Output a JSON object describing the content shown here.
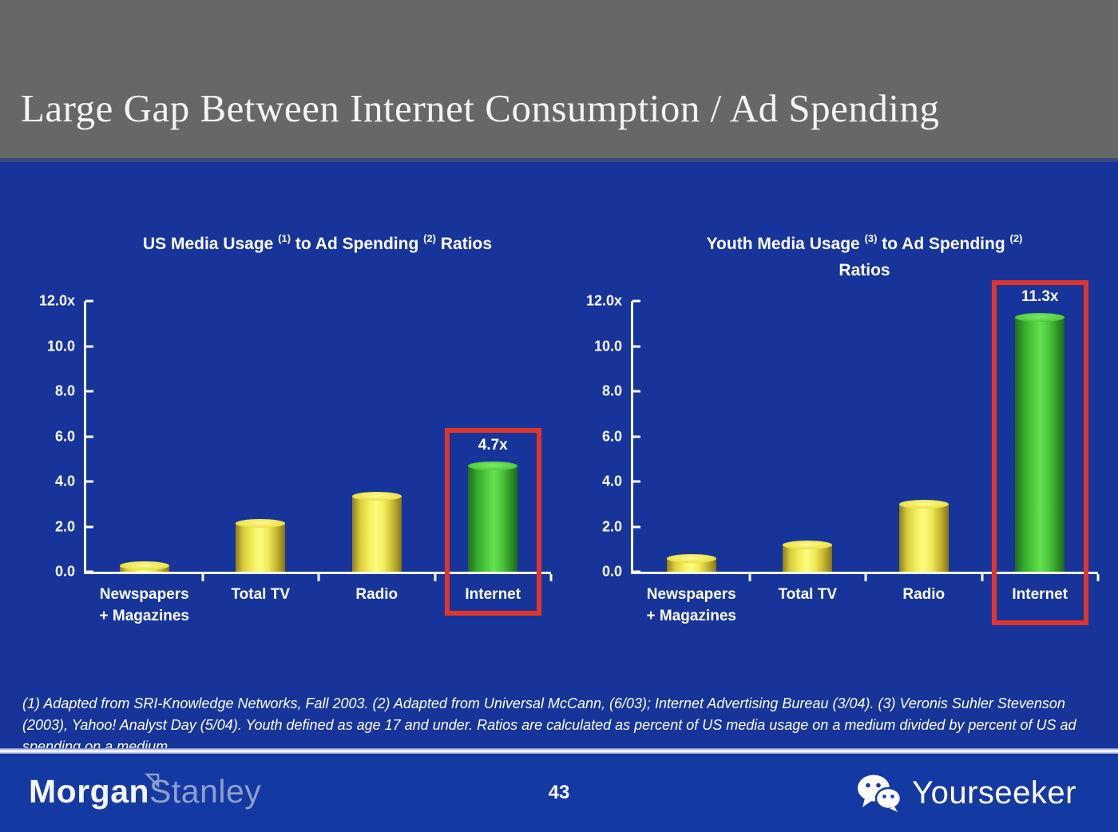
{
  "slide": {
    "title": "Large Gap Between Internet Consumption / Ad Spending",
    "page_number": "43"
  },
  "chart_data": [
    {
      "type": "bar",
      "title_plain": "US Media Usage (1) to Ad Spending (2) Ratios",
      "title_segments": [
        {
          "text": "US Media Usage "
        },
        {
          "sup": "(1)"
        },
        {
          "text": " to Ad Spending "
        },
        {
          "sup": "(2)"
        },
        {
          "text": " Ratios"
        }
      ],
      "categories": [
        "Newspapers\n+ Magazines",
        "Total TV",
        "Radio",
        "Internet"
      ],
      "values": [
        0.3,
        2.15,
        3.35,
        4.7
      ],
      "bar_colors": [
        "yellow",
        "yellow",
        "yellow",
        "green"
      ],
      "value_labels": [
        "",
        "",
        "",
        "4.7x"
      ],
      "highlight_category": "Internet",
      "ylim": [
        0,
        12
      ],
      "yticks": [
        {
          "label": "12.0x",
          "value": 12
        },
        {
          "label": "10.0",
          "value": 10
        },
        {
          "label": "8.0",
          "value": 8
        },
        {
          "label": "6.0",
          "value": 6
        },
        {
          "label": "4.0",
          "value": 4
        },
        {
          "label": "2.0",
          "value": 2
        },
        {
          "label": "0.0",
          "value": 0
        }
      ],
      "grid": false,
      "legend": "none"
    },
    {
      "type": "bar",
      "title_plain": "Youth Media Usage (3) to Ad Spending (2) Ratios",
      "title_segments": [
        {
          "text": "Youth Media Usage "
        },
        {
          "sup": "(3)"
        },
        {
          "text": " to Ad Spending "
        },
        {
          "sup": "(2)"
        },
        {
          "br": true
        },
        {
          "text": "Ratios"
        }
      ],
      "categories": [
        "Newspapers\n+ Magazines",
        "Total TV",
        "Radio",
        "Internet"
      ],
      "values": [
        0.6,
        1.2,
        3.0,
        11.3
      ],
      "bar_colors": [
        "yellow",
        "yellow",
        "yellow",
        "green"
      ],
      "value_labels": [
        "",
        "",
        "",
        "11.3x"
      ],
      "highlight_category": "Internet",
      "ylim": [
        0,
        12
      ],
      "yticks": [
        {
          "label": "12.0x",
          "value": 12
        },
        {
          "label": "10.0",
          "value": 10
        },
        {
          "label": "8.0",
          "value": 8
        },
        {
          "label": "6.0",
          "value": 6
        },
        {
          "label": "4.0",
          "value": 4
        },
        {
          "label": "2.0",
          "value": 2
        },
        {
          "label": "0.0",
          "value": 0
        }
      ],
      "grid": false,
      "legend": "none"
    }
  ],
  "footnote": "(1) Adapted from SRI-Knowledge Networks, Fall 2003.  (2) Adapted from Universal McCann, (6/03); Internet Advertising Bureau (3/04). (3) Veronis Suhler Stevenson (2003), Yahoo! Analyst Day (5/04).  Youth defined as age 17 and under.  Ratios are calculated as percent of US media usage on a medium divided by percent of US ad spending on a medium.",
  "footer": {
    "brand_part1": "Morgan",
    "brand_part2": "Stanley",
    "watermark": "Yourseeker",
    "wechat_icon": "wechat-icon"
  },
  "colors": {
    "header_gray": "#666767",
    "background_blue": "#17349B",
    "footer_blue": "#1539A2",
    "bar_yellow": "#F6F15E",
    "bar_green": "#52CF3F",
    "highlight_red": "#E0352B",
    "text_white": "#FFFFFF"
  }
}
